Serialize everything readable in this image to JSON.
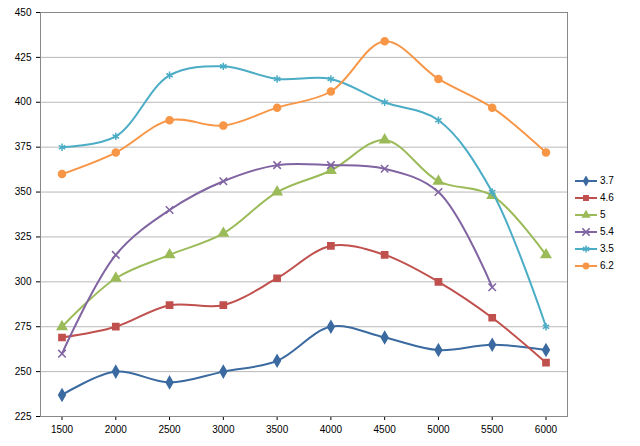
{
  "chart_data": {
    "type": "line",
    "x": [
      1500,
      2000,
      2500,
      3000,
      3500,
      4000,
      4500,
      5000,
      5500,
      6000
    ],
    "xlim": [
      1300,
      6200
    ],
    "xticks": [
      1500,
      2000,
      2500,
      3000,
      3500,
      4000,
      4500,
      5000,
      5500,
      6000
    ],
    "ylim": [
      225,
      450
    ],
    "yticks": [
      225,
      250,
      275,
      300,
      325,
      350,
      375,
      400,
      425,
      450
    ],
    "grid": true,
    "legend": "right",
    "series": [
      {
        "name": "3.7",
        "color": "#3b6aa0",
        "marker": "diamond",
        "values": [
          237,
          250,
          244,
          250,
          256,
          275,
          269,
          262,
          265,
          262
        ]
      },
      {
        "name": "4.6",
        "color": "#c0504d",
        "marker": "square",
        "values": [
          269,
          275,
          287,
          287,
          302,
          320,
          315,
          300,
          280,
          255
        ]
      },
      {
        "name": "5",
        "color": "#9bbb59",
        "marker": "triangle",
        "values": [
          275,
          302,
          315,
          327,
          350,
          362,
          379,
          356,
          348,
          315
        ]
      },
      {
        "name": "5.4",
        "color": "#8064a2",
        "marker": "times",
        "values": [
          260,
          315,
          340,
          356,
          365,
          365,
          363,
          350,
          297,
          null
        ]
      },
      {
        "name": "3.5",
        "color": "#4bacc6",
        "marker": "asterisk",
        "values": [
          375,
          381,
          415,
          420,
          413,
          413,
          400,
          390,
          350,
          275
        ]
      },
      {
        "name": "6.2",
        "color": "#f79646",
        "marker": "circle",
        "values": [
          360,
          372,
          390,
          387,
          397,
          406,
          434,
          413,
          397,
          372
        ]
      }
    ]
  }
}
